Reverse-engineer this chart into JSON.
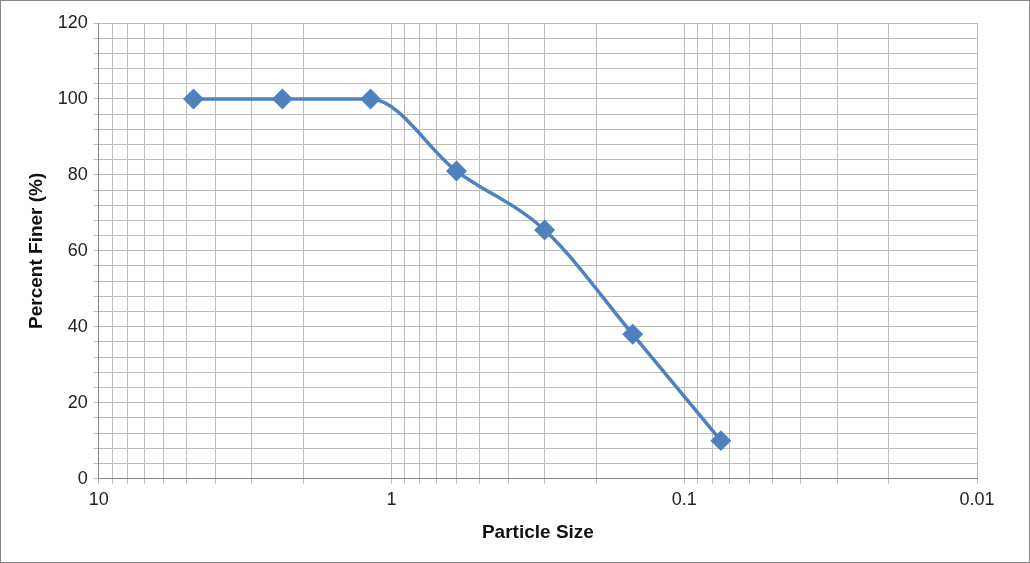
{
  "chart_data": {
    "type": "line",
    "xlabel": "Particle Size",
    "ylabel": "Percent Finer (%)",
    "x": [
      4.75,
      2.36,
      1.18,
      0.6,
      0.3,
      0.15,
      0.075
    ],
    "series": [
      {
        "color": "#4f81bd",
        "values": [
          100,
          100,
          100,
          81,
          65.5,
          38,
          10
        ]
      }
    ],
    "log": "x",
    "xlim": [
      10,
      0.01
    ],
    "xticks": [
      10,
      {
        "value": 9,
        "label": null
      },
      {
        "value": 8,
        "label": null
      },
      {
        "value": 7,
        "label": null
      },
      {
        "value": 6,
        "label": null
      },
      {
        "value": 5,
        "label": null
      },
      {
        "value": 4,
        "label": null
      },
      {
        "value": 3,
        "label": null
      },
      {
        "value": 2,
        "label": null
      },
      1,
      {
        "value": 0.9,
        "label": null
      },
      {
        "value": 0.8,
        "label": null
      },
      {
        "value": 0.7,
        "label": null
      },
      {
        "value": 0.6,
        "label": null
      },
      {
        "value": 0.5,
        "label": null
      },
      {
        "value": 0.4,
        "label": null
      },
      {
        "value": 0.3,
        "label": null
      },
      {
        "value": 0.2,
        "label": null
      },
      0.1,
      {
        "value": 0.09,
        "label": null
      },
      {
        "value": 0.08,
        "label": null
      },
      {
        "value": 0.07,
        "label": null
      },
      {
        "value": 0.06,
        "label": null
      },
      {
        "value": 0.05,
        "label": null
      },
      {
        "value": 0.04,
        "label": null
      },
      {
        "value": 0.03,
        "label": null
      },
      {
        "value": 0.02,
        "label": null
      },
      0.01
    ],
    "ylim": [
      0,
      120
    ],
    "yticks": [
      0,
      {
        "value": 4,
        "label": null
      },
      {
        "value": 8,
        "label": null
      },
      {
        "value": 12,
        "label": null
      },
      {
        "value": 16,
        "label": null
      },
      20,
      {
        "value": 24,
        "label": null
      },
      {
        "value": 28,
        "label": null
      },
      {
        "value": 32,
        "label": null
      },
      {
        "value": 36,
        "label": null
      },
      40,
      {
        "value": 44,
        "label": null
      },
      {
        "value": 48,
        "label": null
      },
      {
        "value": 52,
        "label": null
      },
      {
        "value": 56,
        "label": null
      },
      60,
      {
        "value": 64,
        "label": null
      },
      {
        "value": 68,
        "label": null
      },
      {
        "value": 72,
        "label": null
      },
      {
        "value": 76,
        "label": null
      },
      80,
      {
        "value": 84,
        "label": null
      },
      {
        "value": 88,
        "label": null
      },
      {
        "value": 92,
        "label": null
      },
      {
        "value": 96,
        "label": null
      },
      100,
      {
        "value": 104,
        "label": null
      },
      {
        "value": 108,
        "label": null
      },
      {
        "value": 112,
        "label": null
      },
      {
        "value": 116,
        "label": null
      },
      120
    ],
    "grid": true,
    "legend": false,
    "marker": "diamond",
    "line_style": "solid"
  }
}
